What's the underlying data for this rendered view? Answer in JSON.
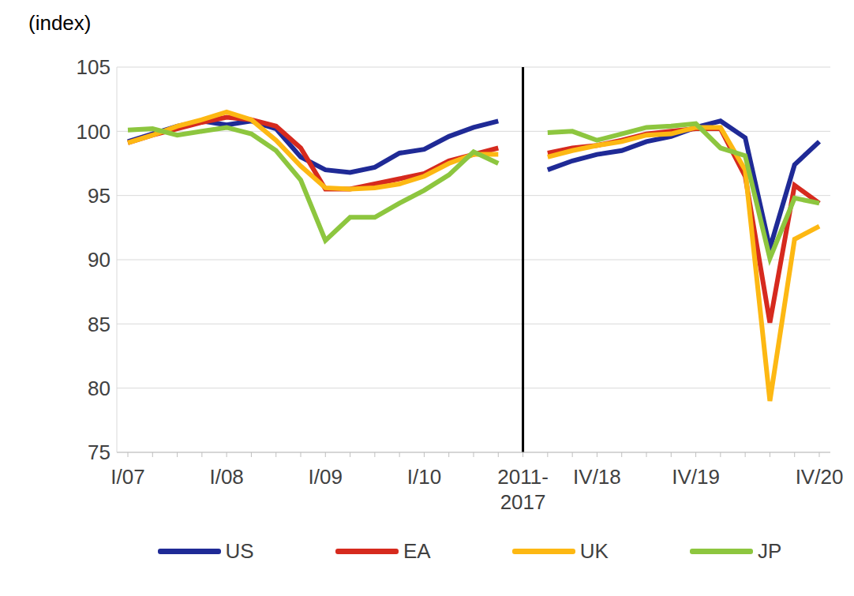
{
  "chart_data": {
    "type": "line",
    "y_label": "(index)",
    "categories": [
      "I/07",
      null,
      null,
      null,
      "I/08",
      null,
      null,
      null,
      "I/09",
      null,
      null,
      null,
      "I/10",
      null,
      null,
      null,
      "2011-2017",
      null,
      null,
      "IV/18",
      null,
      null,
      null,
      "IV/19",
      null,
      null,
      null,
      null,
      "IV/20"
    ],
    "series": [
      {
        "name": "US",
        "color": "#1f2a96",
        "values": [
          99.2,
          99.8,
          100.4,
          100.8,
          100.5,
          100.8,
          100.2,
          98.0,
          97.0,
          96.8,
          97.2,
          98.3,
          98.6,
          99.6,
          100.3,
          100.8,
          null,
          97.0,
          97.7,
          98.2,
          98.5,
          99.2,
          99.6,
          100.3,
          100.8,
          99.5,
          90.9,
          97.4,
          99.2
        ]
      },
      {
        "name": "EA",
        "color": "#d62a1e",
        "values": [
          99.1,
          99.7,
          100.2,
          100.7,
          101.1,
          100.9,
          100.4,
          98.7,
          95.5,
          95.5,
          95.9,
          96.3,
          96.7,
          97.7,
          98.2,
          98.7,
          null,
          98.3,
          98.7,
          98.9,
          99.3,
          99.8,
          100.0,
          100.2,
          100.2,
          96.5,
          85.1,
          95.8,
          94.4
        ]
      },
      {
        "name": "UK",
        "color": "#fdb813",
        "values": [
          99.1,
          99.7,
          100.4,
          100.9,
          101.5,
          100.9,
          99.3,
          97.3,
          95.6,
          95.5,
          95.6,
          95.9,
          96.5,
          97.5,
          98.2,
          98.2,
          null,
          98.0,
          98.5,
          98.9,
          99.2,
          99.7,
          99.8,
          100.3,
          100.3,
          97.0,
          79.0,
          91.6,
          92.6
        ]
      },
      {
        "name": "JP",
        "color": "#8dc63f",
        "values": [
          100.1,
          100.2,
          99.7,
          100.0,
          100.3,
          99.8,
          98.5,
          96.2,
          91.5,
          93.3,
          93.3,
          94.4,
          95.4,
          96.6,
          98.4,
          97.5,
          null,
          99.9,
          100.0,
          99.3,
          99.8,
          100.3,
          100.4,
          100.6,
          98.7,
          98.1,
          90.1,
          94.8,
          94.4
        ]
      }
    ],
    "ylim": [
      75,
      105
    ],
    "yticks": [
      75,
      80,
      85,
      90,
      95,
      100,
      105
    ],
    "grid": true,
    "legend": "bottom"
  }
}
